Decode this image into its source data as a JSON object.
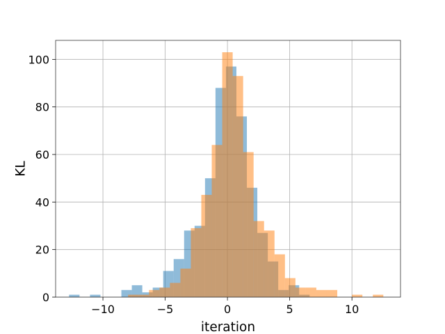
{
  "chart_data": {
    "type": "bar",
    "title": "",
    "xlabel": "iteration",
    "ylabel": "KL",
    "xlim": [
      -13.8,
      13.9
    ],
    "ylim": [
      0,
      108
    ],
    "xticks": [
      -10,
      -5,
      0,
      5,
      10
    ],
    "yticks": [
      0,
      20,
      40,
      60,
      80,
      100
    ],
    "xtick_labels": [
      "−10",
      "−5",
      "0",
      "5",
      "10"
    ],
    "ytick_labels": [
      "0",
      "20",
      "40",
      "60",
      "80",
      "100"
    ],
    "grid": true,
    "legend": "none",
    "series": [
      {
        "color": "#1f77b4",
        "opacity": 0.5,
        "bins": [
          [
            -12.72,
            -11.88,
            1
          ],
          [
            -11.04,
            -10.2,
            1
          ],
          [
            -8.52,
            -7.68,
            3
          ],
          [
            -7.68,
            -6.84,
            5
          ],
          [
            -6.84,
            -6.0,
            2
          ],
          [
            -6.0,
            -5.16,
            4
          ],
          [
            -5.16,
            -4.32,
            11
          ],
          [
            -4.32,
            -3.48,
            16
          ],
          [
            -3.48,
            -2.64,
            28
          ],
          [
            -2.64,
            -1.8,
            30
          ],
          [
            -1.8,
            -0.96,
            50
          ],
          [
            -0.96,
            -0.12,
            88
          ],
          [
            -0.12,
            0.72,
            97
          ],
          [
            0.72,
            1.56,
            76
          ],
          [
            1.56,
            2.4,
            46
          ],
          [
            2.4,
            3.24,
            27
          ],
          [
            3.24,
            4.08,
            15
          ],
          [
            4.08,
            4.92,
            3
          ],
          [
            4.92,
            5.76,
            5
          ],
          [
            5.76,
            6.6,
            1
          ]
        ]
      },
      {
        "color": "#ff7f0e",
        "opacity": 0.5,
        "bins": [
          [
            -7.98,
            -7.14,
            1
          ],
          [
            -7.14,
            -6.3,
            1
          ],
          [
            -6.3,
            -5.46,
            3
          ],
          [
            -5.46,
            -4.62,
            4
          ],
          [
            -4.62,
            -3.78,
            6
          ],
          [
            -3.78,
            -2.94,
            12
          ],
          [
            -2.94,
            -2.1,
            29
          ],
          [
            -2.1,
            -1.26,
            43
          ],
          [
            -1.26,
            -0.42,
            64
          ],
          [
            -0.42,
            0.42,
            103
          ],
          [
            0.42,
            1.26,
            93
          ],
          [
            1.26,
            2.1,
            61
          ],
          [
            2.1,
            2.94,
            32
          ],
          [
            2.94,
            3.78,
            28
          ],
          [
            3.78,
            4.62,
            18
          ],
          [
            4.62,
            5.46,
            8
          ],
          [
            5.46,
            6.3,
            4
          ],
          [
            6.3,
            7.14,
            4
          ],
          [
            7.14,
            7.98,
            3
          ],
          [
            7.98,
            8.82,
            3
          ],
          [
            10.0,
            10.84,
            1
          ],
          [
            11.68,
            12.52,
            1
          ]
        ]
      }
    ]
  }
}
